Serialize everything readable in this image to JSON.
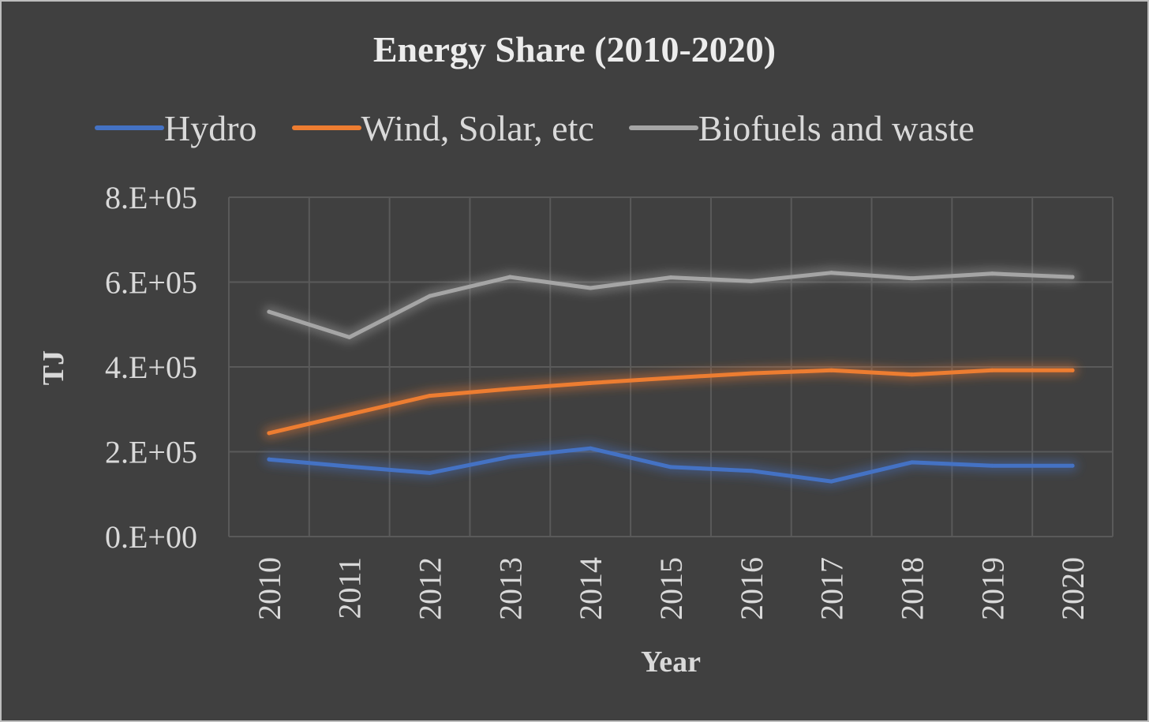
{
  "chart_data": {
    "type": "line",
    "title": "Energy Share (2010-2020)",
    "xlabel": "Year",
    "ylabel": "TJ",
    "categories": [
      "2010",
      "2011",
      "2012",
      "2013",
      "2014",
      "2015",
      "2016",
      "2017",
      "2018",
      "2019",
      "2020"
    ],
    "ylim": [
      0,
      800000
    ],
    "y_ticks": [
      {
        "value": 0,
        "label": "0.E+00"
      },
      {
        "value": 200000,
        "label": "2.E+05"
      },
      {
        "value": 400000,
        "label": "4.E+05"
      },
      {
        "value": 600000,
        "label": "6.E+05"
      },
      {
        "value": 800000,
        "label": "8.E+05"
      }
    ],
    "grid": true,
    "legend_position": "top",
    "series": [
      {
        "name": "Hydro",
        "color": "#4472c4",
        "values": [
          182000,
          165000,
          150000,
          188000,
          208000,
          164000,
          155000,
          130000,
          175000,
          167000,
          167000
        ]
      },
      {
        "name": "Wind, Solar, etc",
        "color": "#ed7d31",
        "values": [
          244000,
          288000,
          332000,
          348000,
          362000,
          374000,
          385000,
          392000,
          382000,
          392000,
          392000
        ]
      },
      {
        "name": "Biofuels and waste",
        "color": "#a5a5a5",
        "values": [
          530000,
          470000,
          567000,
          612000,
          586000,
          611000,
          602000,
          622000,
          609000,
          620000,
          612000
        ]
      }
    ]
  }
}
